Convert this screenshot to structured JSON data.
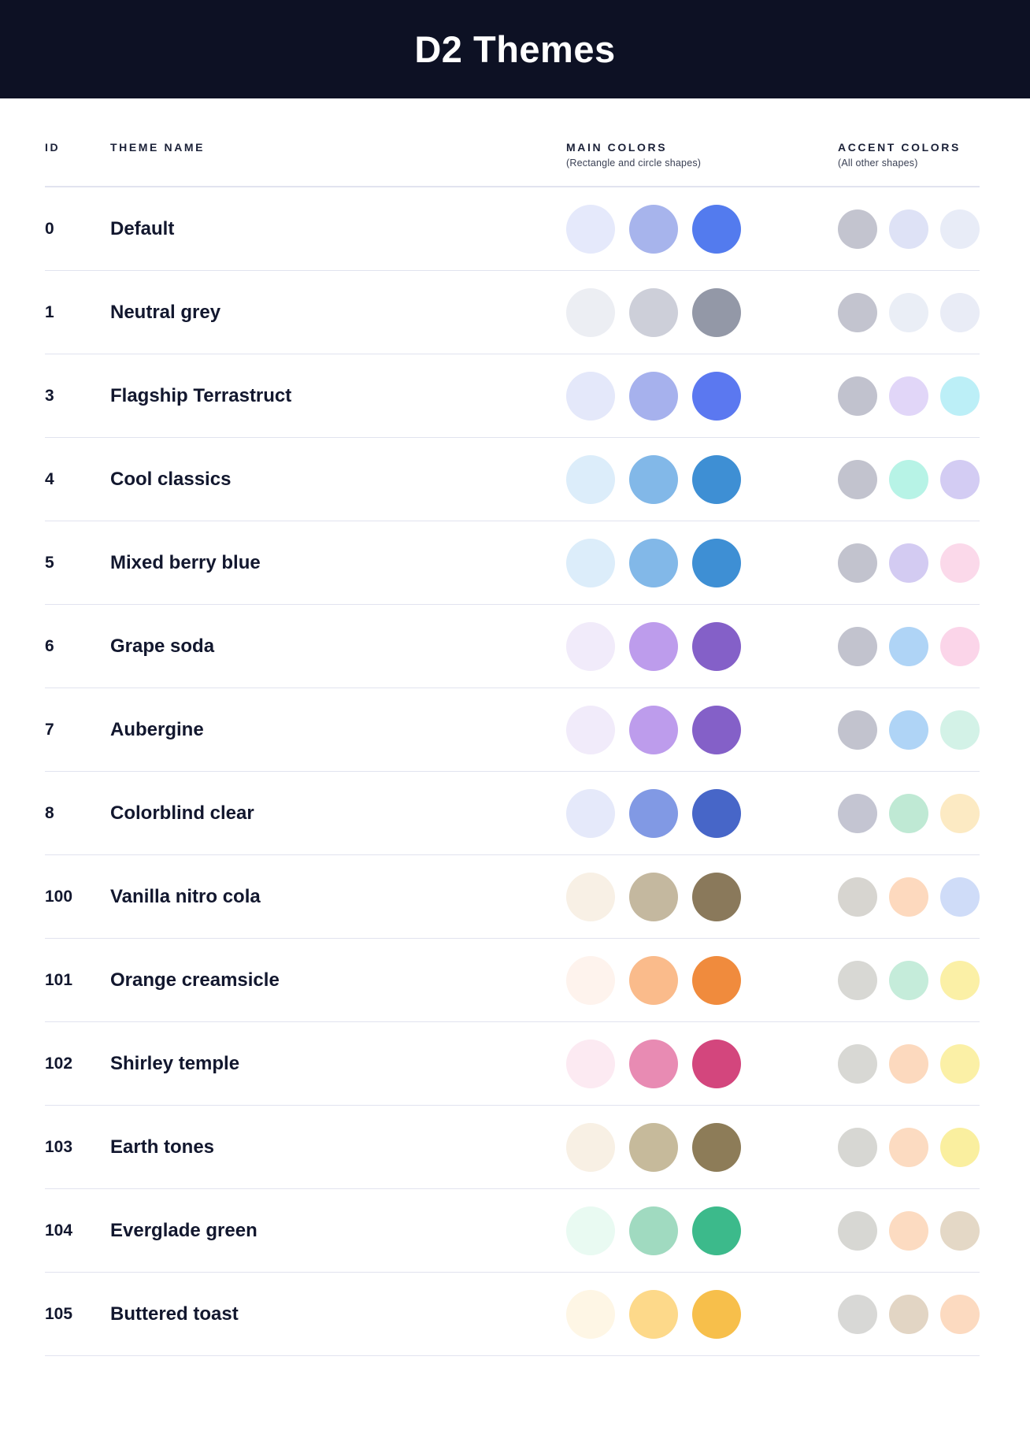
{
  "header": {
    "title": "D2 Themes"
  },
  "table": {
    "columns": {
      "id_label": "ID",
      "name_label": "THEME NAME",
      "main_label": "MAIN COLORS",
      "main_sub": "(Rectangle and circle shapes)",
      "accent_label": "ACCENT COLORS",
      "accent_sub": "(All other shapes)"
    },
    "rows": [
      {
        "id": "0",
        "name": "Default",
        "main": [
          "#E5E9FB",
          "#A7B4EC",
          "#537BEE"
        ],
        "accent": [
          "#C3C4CF",
          "#DEE2F6",
          "#E8ECF7"
        ]
      },
      {
        "id": "1",
        "name": "Neutral grey",
        "main": [
          "#ECEEF3",
          "#CDCFD9",
          "#9398A7"
        ],
        "accent": [
          "#C3C4CF",
          "#EAEEF6",
          "#E9ECF6"
        ]
      },
      {
        "id": "3",
        "name": "Flagship Terrastruct",
        "main": [
          "#E4E8FA",
          "#A6B1ED",
          "#5B78F0"
        ],
        "accent": [
          "#C1C2CE",
          "#E1D6F8",
          "#BCEFF7"
        ]
      },
      {
        "id": "4",
        "name": "Cool classics",
        "main": [
          "#DCEDFA",
          "#82B8E8",
          "#3E8FD4"
        ],
        "accent": [
          "#C2C3CE",
          "#B7F3E6",
          "#D3CCF3"
        ]
      },
      {
        "id": "5",
        "name": "Mixed berry blue",
        "main": [
          "#DCEDFA",
          "#82B8E8",
          "#3E8FD4"
        ],
        "accent": [
          "#C2C3CE",
          "#D3CBF2",
          "#FBD9EA"
        ]
      },
      {
        "id": "6",
        "name": "Grape soda",
        "main": [
          "#F1EBFA",
          "#BD9CEC",
          "#8460C8"
        ],
        "accent": [
          "#C2C3CE",
          "#AFD4F6",
          "#FBD5E9"
        ]
      },
      {
        "id": "7",
        "name": "Aubergine",
        "main": [
          "#F1EBFA",
          "#BD9CEC",
          "#8460C8"
        ],
        "accent": [
          "#C2C3CE",
          "#AFD4F6",
          "#D3F2E7"
        ]
      },
      {
        "id": "8",
        "name": "Colorblind clear",
        "main": [
          "#E5E9FA",
          "#8199E4",
          "#4766C8"
        ],
        "accent": [
          "#C4C5D2",
          "#BFE9D4",
          "#FCEAC3"
        ]
      },
      {
        "id": "100",
        "name": "Vanilla nitro cola",
        "main": [
          "#F8F0E5",
          "#C4B89F",
          "#8A795B"
        ],
        "accent": [
          "#D7D5D0",
          "#FDD9BE",
          "#CFDCF8"
        ]
      },
      {
        "id": "101",
        "name": "Orange creamsicle",
        "main": [
          "#FEF3ED",
          "#FABB8B",
          "#F08B3D"
        ],
        "accent": [
          "#D8D8D4",
          "#C5ECDA",
          "#FBF0A6"
        ]
      },
      {
        "id": "102",
        "name": "Shirley temple",
        "main": [
          "#FCEAF2",
          "#E88BB3",
          "#D3467D"
        ],
        "accent": [
          "#D8D8D4",
          "#FCD9BE",
          "#FBF0A6"
        ]
      },
      {
        "id": "103",
        "name": "Earth tones",
        "main": [
          "#F8F0E4",
          "#C6BA9B",
          "#8D7C58"
        ],
        "accent": [
          "#D7D7D3",
          "#FCDBC1",
          "#FAEF9F"
        ]
      },
      {
        "id": "104",
        "name": "Everglade green",
        "main": [
          "#E9FAF2",
          "#A0DAC0",
          "#3CBA8B"
        ],
        "accent": [
          "#D7D7D3",
          "#FCDBC1",
          "#E4D8C6"
        ]
      },
      {
        "id": "105",
        "name": "Buttered toast",
        "main": [
          "#FEF6E5",
          "#FDD98A",
          "#F7BF4B"
        ],
        "accent": [
          "#D8D8D6",
          "#E2D5C4",
          "#FCDAC0"
        ]
      }
    ]
  }
}
